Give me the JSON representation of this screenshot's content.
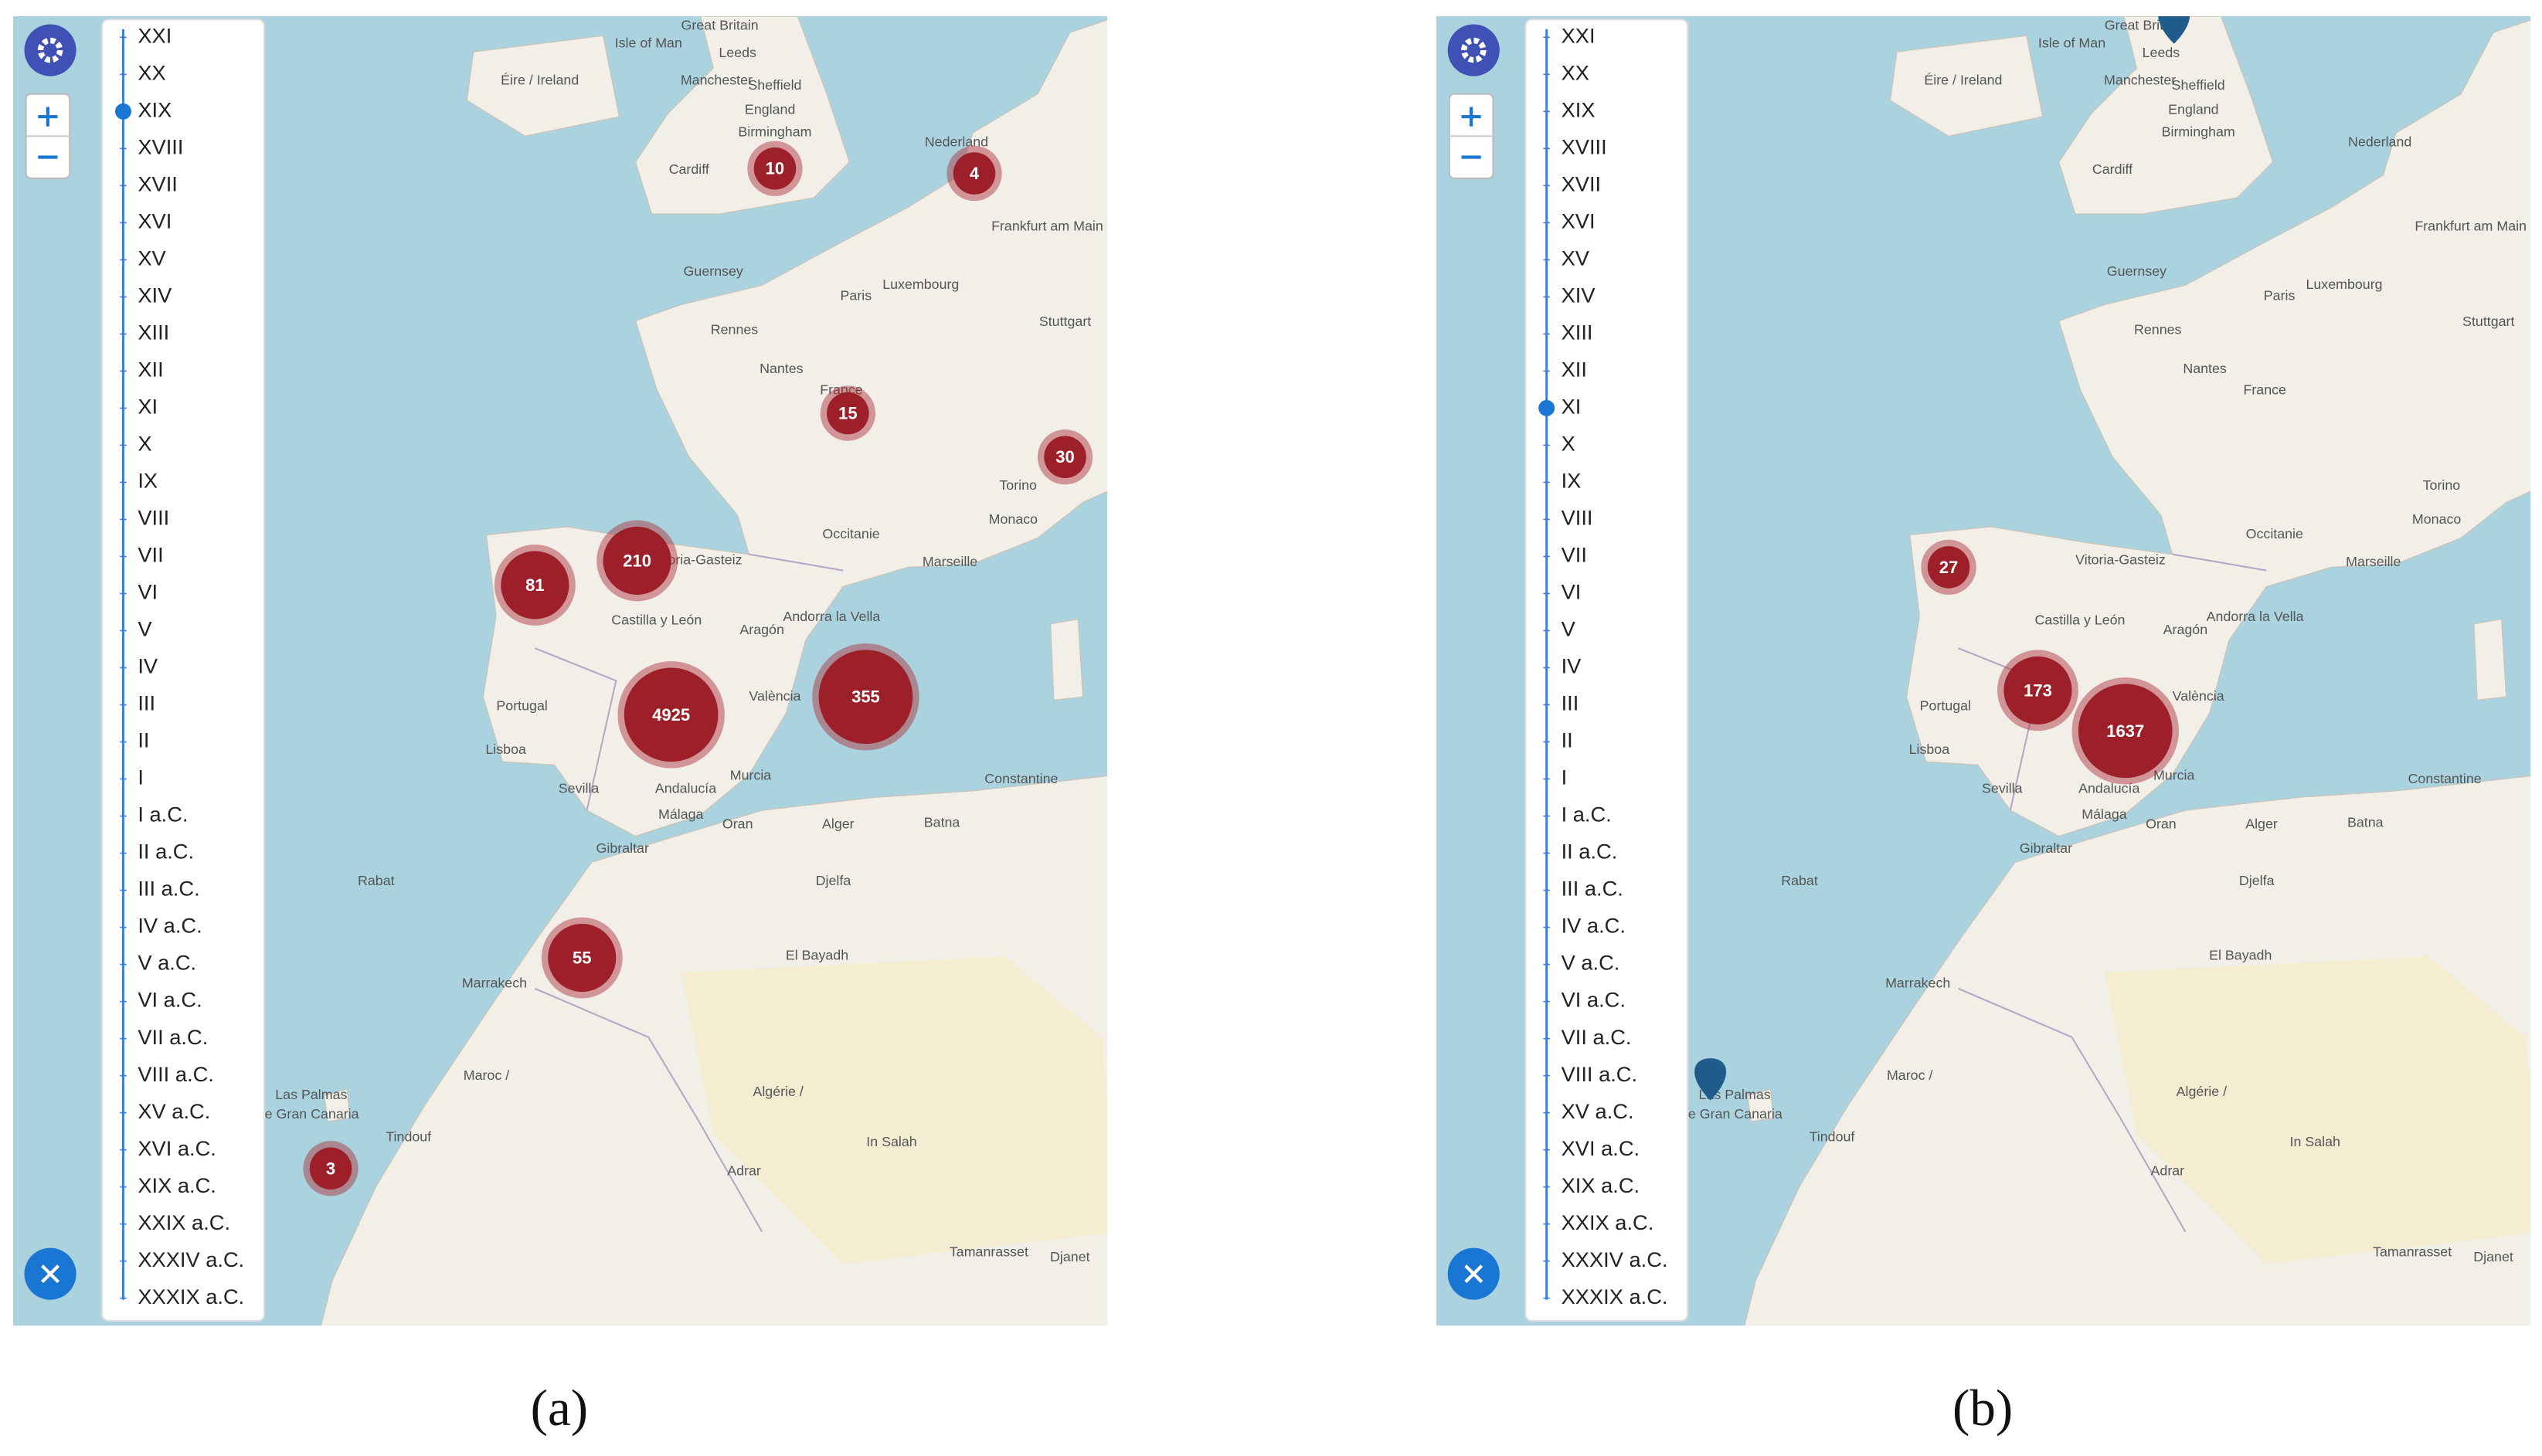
{
  "map": {
    "labels": [
      "Great Britain",
      "Isle of Man",
      "Éire / Ireland",
      "Leeds",
      "Manchester",
      "Sheffield",
      "England",
      "Birmingham",
      "Cardiff",
      "Nederland",
      "Guernsey",
      "Paris",
      "Rennes",
      "Nantes",
      "France",
      "Luxembourg",
      "Frankfurt am Main",
      "Stuttgart",
      "Marseille",
      "Torino",
      "Monaco",
      "Andorra la Vella",
      "Vitoria-Gasteiz",
      "Portugal",
      "Lisboa",
      "València",
      "Sevilla",
      "Málaga",
      "Murcia",
      "Gibraltar",
      "Rabat",
      "Marrakech",
      "Algérie /",
      "Las Palmas",
      "de Gran Canaria",
      "Constantine",
      "Oran",
      "Alger",
      "Batna",
      "Djelfa",
      "Tindouf",
      "Adrar",
      "In Salah",
      "Tamanrasset",
      "Djanet",
      "El Bayadh",
      "Maroc /",
      "Occitanie",
      "Castilla y León",
      "Aragón",
      "Andalucía"
    ]
  },
  "panels": [
    {
      "caption": "(a)",
      "centuries": [
        "XXI",
        "XX",
        "XIX",
        "XVIII",
        "XVII",
        "XVI",
        "XV",
        "XIV",
        "XIII",
        "XII",
        "XI",
        "X",
        "IX",
        "VIII",
        "VII",
        "VI",
        "V",
        "IV",
        "III",
        "II",
        "I",
        "I a.C.",
        "II a.C.",
        "III a.C.",
        "IV a.C.",
        "V a.C.",
        "VI a.C.",
        "VII a.C.",
        "VIII a.C.",
        "XV a.C.",
        "XVI a.C.",
        "XIX a.C.",
        "XXIX a.C.",
        "XXXIV a.C.",
        "XXXIX a.C."
      ],
      "selected_index": 2,
      "clusters": [
        10,
        4,
        15,
        30,
        81,
        210,
        4925,
        355,
        55,
        3
      ]
    },
    {
      "caption": "(b)",
      "centuries": [
        "XXI",
        "XX",
        "XIX",
        "XVIII",
        "XVII",
        "XVI",
        "XV",
        "XIV",
        "XIII",
        "XII",
        "XI",
        "X",
        "IX",
        "VIII",
        "VII",
        "VI",
        "V",
        "IV",
        "III",
        "II",
        "I",
        "I a.C.",
        "II a.C.",
        "III a.C.",
        "IV a.C.",
        "V a.C.",
        "VI a.C.",
        "VII a.C.",
        "VIII a.C.",
        "XV a.C.",
        "XVI a.C.",
        "XIX a.C.",
        "XXIX a.C.",
        "XXXIV a.C.",
        "XXXIX a.C."
      ],
      "selected_index": 10,
      "clusters": [
        27,
        173,
        1637
      ]
    }
  ]
}
